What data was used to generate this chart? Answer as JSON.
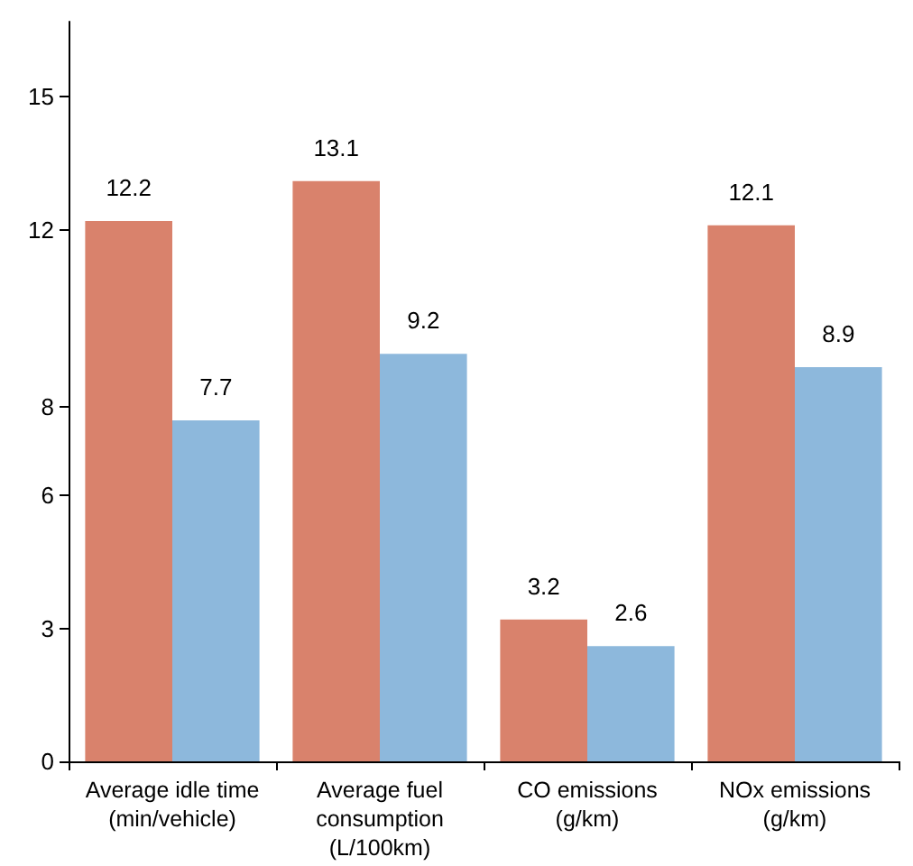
{
  "chart_data": {
    "type": "bar",
    "categories": [
      "Average idle time\n(min/vehicle)",
      "Average fuel\nconsumption\n(L/100km)",
      "CO emissions\n(g/km)",
      "NOx emissions\n(g/km)"
    ],
    "series": [
      {
        "color": "#d9826c",
        "values": [
          12.2,
          13.1,
          3.2,
          12.1
        ]
      },
      {
        "color": "#8db8dc",
        "values": [
          7.7,
          9.2,
          2.6,
          8.9
        ]
      }
    ],
    "ylim": [
      0,
      16.7
    ],
    "yticks": [
      0,
      3,
      6,
      8,
      12,
      15
    ],
    "data_labels": true,
    "grid": false
  }
}
